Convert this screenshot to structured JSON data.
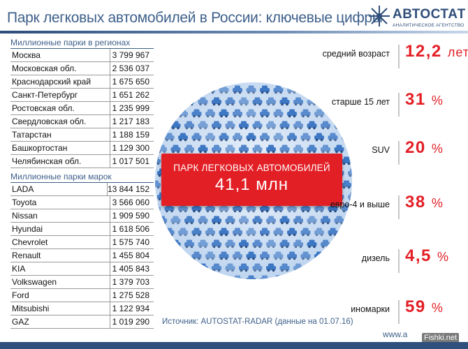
{
  "header": {
    "title": "Парк легковых автомобилей в России: ключевые цифры",
    "logo_name": "АВТОСТАТ",
    "logo_sub": "АНАЛИТИЧЕСКОЕ АГЕНТСТВО"
  },
  "regions": {
    "heading": "Миллионные парки в регионах",
    "rows": [
      {
        "name": "Москва",
        "value": "3 799 967"
      },
      {
        "name": "Московская обл.",
        "value": "2 536 037"
      },
      {
        "name": "Краснодарский край",
        "value": "1 675 650"
      },
      {
        "name": "Санкт-Петербург",
        "value": "1 651 262"
      },
      {
        "name": "Ростовская обл.",
        "value": "1 235 999"
      },
      {
        "name": "Свердловская обл.",
        "value": "1 217 183"
      },
      {
        "name": "Татарстан",
        "value": "1 188 159"
      },
      {
        "name": "Башкортостан",
        "value": "1 129 300"
      },
      {
        "name": "Челябинская обл.",
        "value": "1 017 501"
      }
    ]
  },
  "brands": {
    "heading": "Миллионные парки марок",
    "rows": [
      {
        "name": "LADA",
        "value": "13 844 152"
      },
      {
        "name": "Toyota",
        "value": "3 566 060"
      },
      {
        "name": "Nissan",
        "value": "1 909 590"
      },
      {
        "name": "Hyundai",
        "value": "1 618 506"
      },
      {
        "name": "Chevrolet",
        "value": "1 575 740"
      },
      {
        "name": "Renault",
        "value": "1 455 804"
      },
      {
        "name": "KIA",
        "value": "1 405 843"
      },
      {
        "name": "Volkswagen",
        "value": "1 379 703"
      },
      {
        "name": "Ford",
        "value": "1 275 528"
      },
      {
        "name": "Mitsubishi",
        "value": "1 122 934"
      },
      {
        "name": "GAZ",
        "value": "1 019 290"
      }
    ]
  },
  "banner": {
    "title": "ПАРК ЛЕГКОВЫХ АВТОМОБИЛЕЙ",
    "value": "41,1 млн"
  },
  "metrics": [
    {
      "label": "средний возраст",
      "value": "12,2",
      "unit": "лет"
    },
    {
      "label": "старше 15 лет",
      "value": "31",
      "unit": "%"
    },
    {
      "label": "SUV",
      "value": "20",
      "unit": "%"
    },
    {
      "label": "евро-4 и выше",
      "value": "38",
      "unit": "%"
    },
    {
      "label": "дизель",
      "value": "4,5",
      "unit": "%"
    },
    {
      "label": "иномарки",
      "value": "59",
      "unit": "%"
    }
  ],
  "footer": {
    "source": "Источник: AUTOSTAT-RADAR (данные на 01.07.16)",
    "site": "www.a",
    "watermark": "Fishki.net"
  },
  "colors": {
    "accent_red": "#e31f26",
    "brand_blue": "#3d5f8a",
    "circle_light": "#cfe0f3",
    "car_blue": "#2f6dc0"
  },
  "chart_data": [
    {
      "type": "table",
      "title": "Миллионные парки в регионах",
      "categories": [
        "Москва",
        "Московская обл.",
        "Краснодарский край",
        "Санкт-Петербург",
        "Ростовская обл.",
        "Свердловская обл.",
        "Татарстан",
        "Башкортостан",
        "Челябинская обл."
      ],
      "values": [
        3799967,
        2536037,
        1675650,
        1651262,
        1235999,
        1217183,
        1188159,
        1129300,
        1017501
      ]
    },
    {
      "type": "table",
      "title": "Миллионные парки марок",
      "categories": [
        "LADA",
        "Toyota",
        "Nissan",
        "Hyundai",
        "Chevrolet",
        "Renault",
        "KIA",
        "Volkswagen",
        "Ford",
        "Mitsubishi",
        "GAZ"
      ],
      "values": [
        13844152,
        3566060,
        1909590,
        1618506,
        1575740,
        1455804,
        1405843,
        1379703,
        1275528,
        1122934,
        1019290
      ]
    }
  ]
}
